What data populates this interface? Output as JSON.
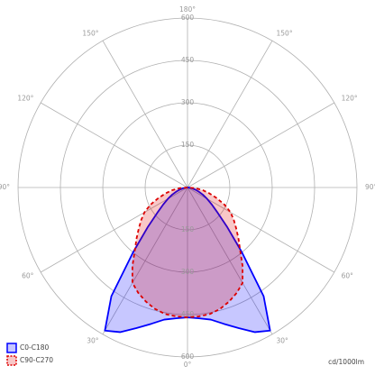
{
  "chart_data": {
    "type": "polar",
    "unit_label": "cd/1000lm",
    "x": [
      -90,
      -85,
      -80,
      -75,
      -70,
      -65,
      -60,
      -55,
      -50,
      -45,
      -40,
      -35,
      -30,
      -25,
      -20,
      -15,
      -10,
      -5,
      0,
      5,
      10,
      15,
      20,
      25,
      30,
      35,
      40,
      45,
      50,
      55,
      60,
      65,
      70,
      75,
      80,
      85,
      90
    ],
    "series": [
      {
        "name": "C0-C180",
        "color": "#0000ff",
        "dashed": false,
        "values": [
          0,
          7,
          16,
          28,
          42,
          60,
          80,
          105,
          140,
          200,
          300,
          470,
          585,
          565,
          530,
          500,
          475,
          465,
          460,
          465,
          475,
          500,
          530,
          565,
          585,
          470,
          300,
          200,
          140,
          105,
          80,
          60,
          42,
          28,
          16,
          7,
          0
        ]
      },
      {
        "name": "C90-C270",
        "color": "#dd0000",
        "dashed": true,
        "values": [
          0,
          28,
          55,
          80,
          110,
          145,
          176,
          200,
          225,
          255,
          290,
          340,
          390,
          412,
          430,
          445,
          455,
          458,
          460,
          458,
          455,
          445,
          430,
          412,
          390,
          340,
          290,
          255,
          225,
          200,
          176,
          145,
          110,
          80,
          55,
          28,
          0
        ]
      }
    ],
    "rlim": [
      0,
      600
    ],
    "rticks": [
      150,
      300,
      450,
      600
    ],
    "angle_ticks": [
      {
        "value": 0,
        "label": "0°"
      },
      {
        "value": 30,
        "label": "30°"
      },
      {
        "value": 60,
        "label": "60°"
      },
      {
        "value": 90,
        "label": "90°"
      },
      {
        "value": 120,
        "label": "120°"
      },
      {
        "value": 150,
        "label": "150°"
      },
      {
        "value": 180,
        "label": "180°"
      },
      {
        "value": -30,
        "label": "30°"
      },
      {
        "value": -60,
        "label": "60°"
      },
      {
        "value": -90,
        "label": "90°"
      },
      {
        "value": -120,
        "label": "120°"
      },
      {
        "value": -150,
        "label": "150°"
      }
    ],
    "grid": true,
    "legend": "bottom-left"
  }
}
